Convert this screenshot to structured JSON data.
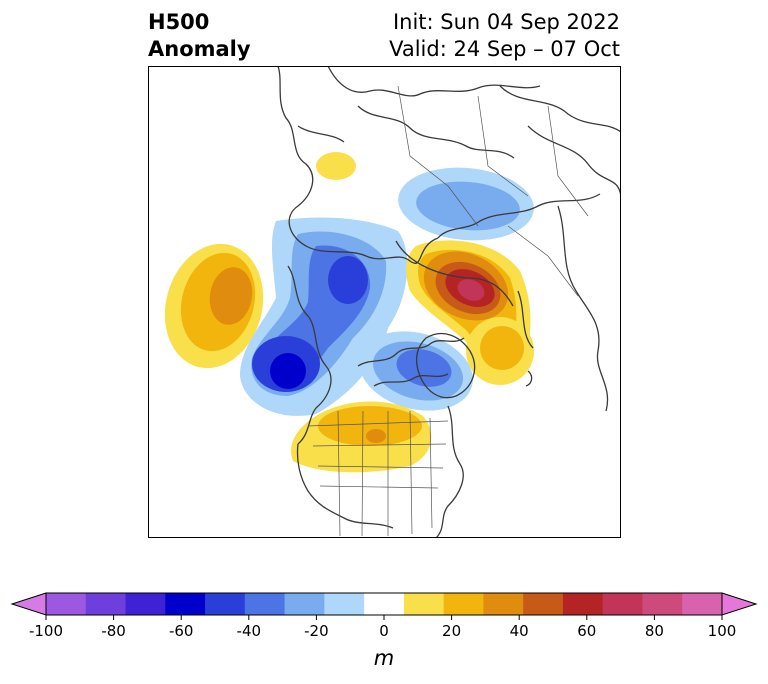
{
  "title": {
    "left_line1": "H500",
    "left_line2": "Anomaly",
    "right_line1": "Init: Sun 04 Sep 2022",
    "right_line2": "Valid: 24 Sep – 07 Oct"
  },
  "map": {
    "projection": "polar stereographic (North Pole)",
    "field": "500 hPa geopotential height anomaly",
    "features": [
      {
        "name": "positive-anomaly-north-pacific",
        "sign": "positive",
        "peak_m": 40
      },
      {
        "name": "negative-anomaly-gulf-of-alaska",
        "sign": "negative",
        "peak_m": -60
      },
      {
        "name": "negative-anomaly-alaska",
        "sign": "negative",
        "peak_m": -40
      },
      {
        "name": "negative-anomaly-siberia",
        "sign": "negative",
        "peak_m": -30
      },
      {
        "name": "positive-anomaly-scandinavia",
        "sign": "positive",
        "peak_m": 70
      },
      {
        "name": "negative-anomaly-greenland",
        "sign": "negative",
        "peak_m": -40
      },
      {
        "name": "positive-anomaly-north-atlantic",
        "sign": "positive",
        "peak_m": 30
      },
      {
        "name": "positive-anomaly-central-north-america",
        "sign": "positive",
        "peak_m": 40
      },
      {
        "name": "positive-anomaly-east-asia",
        "sign": "positive",
        "peak_m": 20
      }
    ]
  },
  "colorbar": {
    "levels": [
      -100,
      -90,
      -80,
      -70,
      -60,
      -50,
      -40,
      -30,
      -20,
      -10,
      10,
      20,
      30,
      40,
      50,
      60,
      70,
      80,
      90,
      100
    ],
    "colors": [
      "#d57be6",
      "#9c58e0",
      "#6e3fdc",
      "#3f22d6",
      "#0000cc",
      "#2a3fd9",
      "#4d74e5",
      "#79acef",
      "#aed7f9",
      "#ffffff",
      "#f9e04b",
      "#f2b50d",
      "#e08c0e",
      "#c85a18",
      "#b52424",
      "#c23458",
      "#cc4a7c",
      "#d862ad",
      "#e378d9"
    ],
    "tick_labels": [
      "-100",
      "-80",
      "-60",
      "-40",
      "-20",
      "0",
      "20",
      "40",
      "60",
      "80",
      "100"
    ],
    "unit": "m",
    "extend": "both"
  }
}
